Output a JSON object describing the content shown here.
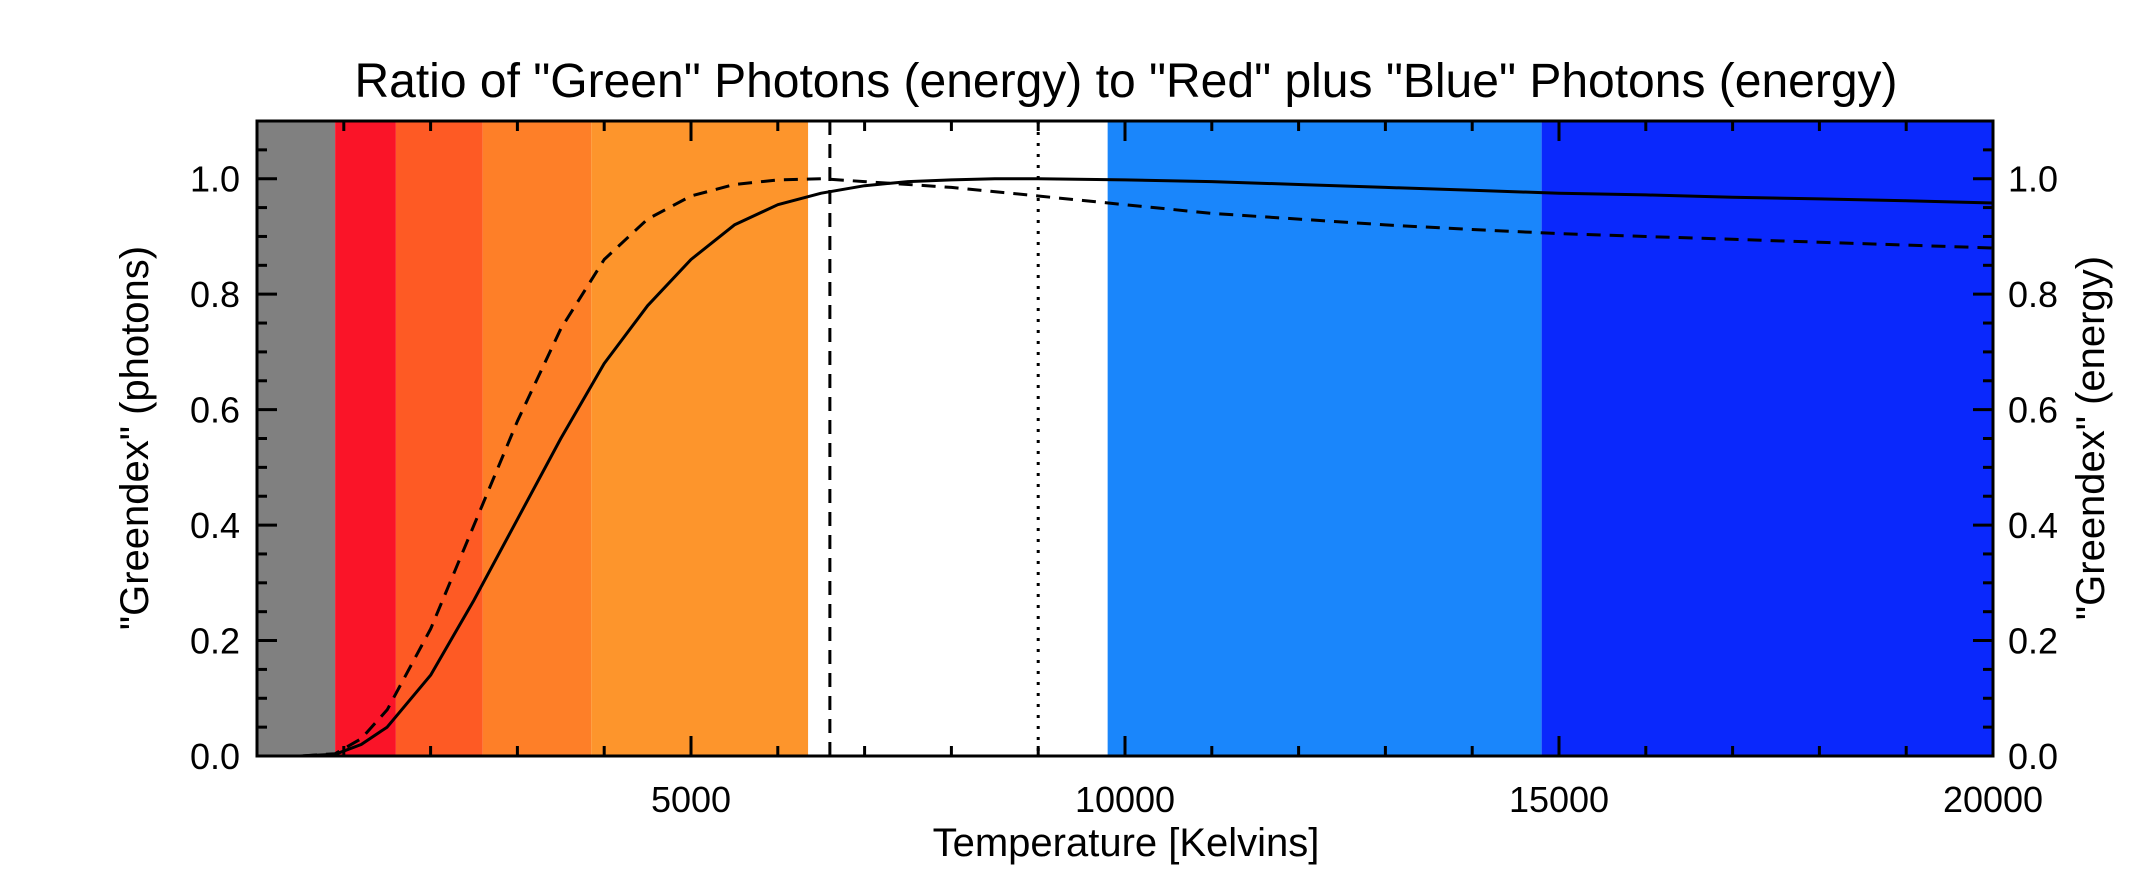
{
  "chart_data": {
    "type": "line",
    "title": "Ratio of \"Green\" Photons (energy) to \"Red\" plus \"Blue\" Photons (energy)",
    "xlabel": "Temperature [Kelvins]",
    "ylabel": "\"Greendex\" (photons)",
    "ylabel_right": "\"Greendex\" (energy)",
    "xlim": [
      0,
      20000
    ],
    "ylim": [
      0,
      1.1
    ],
    "x_ticks": [
      5000,
      10000,
      15000,
      20000
    ],
    "x_tick_labels": [
      "5000",
      "10000",
      "15000",
      "20000"
    ],
    "y_ticks": [
      0.0,
      0.2,
      0.4,
      0.6,
      0.8,
      1.0
    ],
    "y_tick_labels": [
      "0.0",
      "0.2",
      "0.4",
      "0.6",
      "0.8",
      "1.0"
    ],
    "grid": false,
    "background_bands": [
      {
        "x0": 0,
        "x1": 900,
        "color": "#808080"
      },
      {
        "x0": 900,
        "x1": 1600,
        "color": "#fa1428"
      },
      {
        "x0": 1600,
        "x1": 2600,
        "color": "#fe5a24"
      },
      {
        "x0": 2600,
        "x1": 3850,
        "color": "#fe7f28"
      },
      {
        "x0": 3850,
        "x1": 6350,
        "color": "#fd952c"
      },
      {
        "x0": 6350,
        "x1": 9800,
        "color": "#ffffff"
      },
      {
        "x0": 9800,
        "x1": 14800,
        "color": "#1a86fb"
      },
      {
        "x0": 14800,
        "x1": 20000,
        "color": "#0a28fc"
      }
    ],
    "vertical_lines": [
      {
        "x": 6600,
        "style": "dashed"
      },
      {
        "x": 9000,
        "style": "dotted"
      }
    ],
    "series": [
      {
        "style": "solid",
        "x": [
          0,
          500,
          900,
          1200,
          1500,
          2000,
          2500,
          3000,
          3500,
          4000,
          4500,
          5000,
          5500,
          6000,
          6500,
          7000,
          7500,
          8000,
          8500,
          9000,
          10000,
          11000,
          12000,
          13000,
          14000,
          15000,
          16000,
          17000,
          18000,
          19000,
          20000
        ],
        "values": [
          0.0,
          0.0,
          0.003,
          0.02,
          0.05,
          0.14,
          0.27,
          0.41,
          0.55,
          0.68,
          0.78,
          0.86,
          0.92,
          0.955,
          0.975,
          0.988,
          0.995,
          0.998,
          1.0,
          1.0,
          0.998,
          0.995,
          0.99,
          0.985,
          0.98,
          0.975,
          0.972,
          0.968,
          0.965,
          0.962,
          0.958
        ]
      },
      {
        "style": "dashed",
        "x": [
          0,
          500,
          900,
          1200,
          1500,
          2000,
          2500,
          3000,
          3500,
          4000,
          4500,
          5000,
          5500,
          6000,
          6500,
          7000,
          8000,
          9000,
          10000,
          11000,
          12000,
          13000,
          14000,
          15000,
          16000,
          17000,
          18000,
          19000,
          20000
        ],
        "values": [
          0.0,
          0.0,
          0.004,
          0.03,
          0.08,
          0.22,
          0.4,
          0.58,
          0.74,
          0.86,
          0.93,
          0.97,
          0.99,
          0.998,
          1.0,
          0.995,
          0.985,
          0.97,
          0.955,
          0.94,
          0.93,
          0.92,
          0.912,
          0.905,
          0.9,
          0.895,
          0.89,
          0.885,
          0.88
        ]
      }
    ]
  }
}
